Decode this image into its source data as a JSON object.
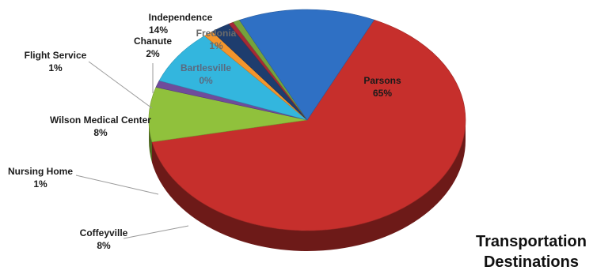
{
  "chart_data": {
    "type": "pie",
    "style": "3d",
    "title": "Transportation Destinations",
    "title_lines": [
      "Transportation",
      "Destinations"
    ],
    "legend": "none",
    "slices": [
      {
        "name": "Parsons",
        "label": "Parsons",
        "percent_label": "65%",
        "value": 65,
        "color": "#c62f2c"
      },
      {
        "name": "Coffeyville",
        "label": "Coffeyville",
        "percent_label": "8%",
        "value": 8,
        "color": "#90c13c"
      },
      {
        "name": "Nursing Home",
        "label": "Nursing Home",
        "percent_label": "1%",
        "value": 1,
        "color": "#6f4c9b"
      },
      {
        "name": "Wilson Medical Center",
        "label": "Wilson Medical Center",
        "percent_label": "8%",
        "value": 8,
        "color": "#33b6de"
      },
      {
        "name": "Flight Service",
        "label": "Flight Service",
        "percent_label": "1%",
        "value": 1,
        "color": "#f4952c"
      },
      {
        "name": "Chanute",
        "label": "Chanute",
        "percent_label": "2%",
        "value": 2,
        "color": "#1e3d6e"
      },
      {
        "name": "Bartlesville",
        "label": "Bartlesville",
        "percent_label": "0%",
        "value": 0.5,
        "color": "#a52a36"
      },
      {
        "name": "Fredonia",
        "label": "Fredonia",
        "percent_label": "1%",
        "value": 0.7,
        "color": "#75a23c"
      },
      {
        "name": "Independence",
        "label": "Independence",
        "percent_label": "14%",
        "value": 14,
        "color": "#2f70c4"
      }
    ]
  }
}
